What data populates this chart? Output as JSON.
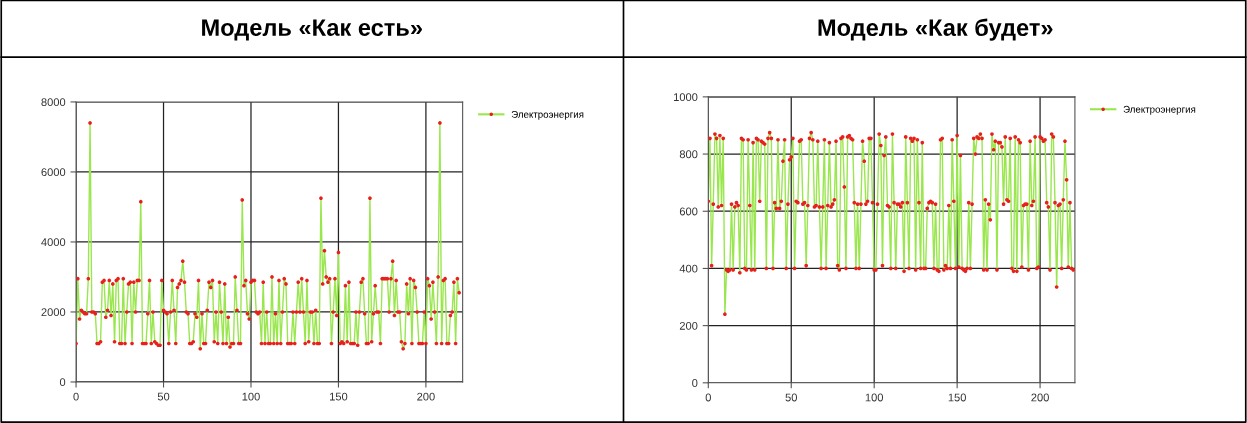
{
  "chart_data": [
    {
      "type": "line",
      "title": "Модель «Как есть»",
      "xlim": [
        0,
        221
      ],
      "xticks": [
        0,
        50,
        100,
        150,
        200
      ],
      "ylim": [
        0,
        8000
      ],
      "yticks": [
        0,
        2000,
        4000,
        6000,
        8000
      ],
      "grid": true,
      "legend": "top right",
      "marker": "circle",
      "line_style": "solid",
      "series": [
        {
          "name": "Электроэнергия",
          "color": "#99e64d",
          "x": [
            0,
            1,
            2,
            3,
            4,
            5,
            6,
            7,
            8,
            9,
            10,
            11,
            12,
            13,
            14,
            15,
            16,
            17,
            18,
            19,
            20,
            21,
            22,
            23,
            24,
            25,
            26,
            27,
            28,
            29,
            30,
            31,
            32,
            33,
            34,
            35,
            36,
            37,
            38,
            39,
            40,
            41,
            42,
            43,
            44,
            45,
            46,
            47,
            48,
            49,
            50,
            51,
            52,
            53,
            54,
            55,
            56,
            57,
            58,
            59,
            60,
            61,
            62,
            63,
            64,
            65,
            66,
            67,
            68,
            69,
            70,
            71,
            72,
            73,
            74,
            75,
            76,
            77,
            78,
            79,
            80,
            81,
            82,
            83,
            84,
            85,
            86,
            87,
            88,
            89,
            90,
            91,
            92,
            93,
            94,
            95,
            96,
            97,
            98,
            99,
            100,
            101,
            102,
            103,
            104,
            105,
            106,
            107,
            108,
            109,
            110,
            111,
            112,
            113,
            114,
            115,
            116,
            117,
            118,
            119,
            120,
            121,
            122,
            123,
            124,
            125,
            126,
            127,
            128,
            129,
            130,
            131,
            132,
            133,
            134,
            135,
            136,
            137,
            138,
            139,
            140,
            141,
            142,
            143,
            144,
            145,
            146,
            147,
            148,
            149,
            150,
            151,
            152,
            153,
            154,
            155,
            156,
            157,
            158,
            159,
            160,
            161,
            162,
            163,
            164,
            165,
            166,
            167,
            168,
            169,
            170,
            171,
            172,
            173,
            174,
            175,
            176,
            177,
            178,
            179,
            180,
            181,
            182,
            183,
            184,
            185,
            186,
            187,
            188,
            189,
            190,
            191,
            192,
            193,
            194,
            195,
            196,
            197,
            198,
            199,
            200,
            201,
            202,
            203,
            204,
            205,
            206,
            207,
            208,
            209,
            210,
            211,
            212,
            213,
            214,
            215,
            216,
            217,
            218,
            219
          ],
          "values": [
            1100,
            2950,
            1800,
            2050,
            2000,
            1950,
            1950,
            2950,
            7400,
            2000,
            2000,
            1950,
            1100,
            1100,
            1150,
            2850,
            2900,
            1850,
            2050,
            2900,
            1900,
            2800,
            1150,
            2900,
            2950,
            1100,
            1100,
            2950,
            1100,
            2000,
            2800,
            2850,
            1100,
            2850,
            2000,
            2900,
            2900,
            5150,
            1100,
            1100,
            1100,
            1950,
            2900,
            1100,
            2000,
            1150,
            1100,
            1050,
            1050,
            2900,
            2050,
            2000,
            1950,
            1100,
            2000,
            2900,
            2050,
            1100,
            2700,
            2800,
            2900,
            3450,
            2850,
            2000,
            1950,
            1100,
            1100,
            1150,
            1950,
            1850,
            2900,
            950,
            1950,
            1100,
            1100,
            2050,
            2850,
            2700,
            2900,
            1150,
            2000,
            1100,
            2850,
            2000,
            1100,
            2800,
            1100,
            1850,
            1000,
            1100,
            1100,
            3000,
            2050,
            1100,
            1100,
            5200,
            2750,
            2900,
            1950,
            1800,
            2850,
            2900,
            2900,
            2000,
            1950,
            2000,
            1100,
            2850,
            1100,
            2000,
            1100,
            1100,
            3000,
            1100,
            1950,
            1100,
            2900,
            1100,
            2000,
            2950,
            2800,
            1100,
            1100,
            1100,
            2000,
            1100,
            2000,
            2850,
            2000,
            2950,
            2000,
            1100,
            2900,
            1150,
            2000,
            2000,
            1100,
            2050,
            1100,
            1100,
            5250,
            2800,
            3750,
            3000,
            2850,
            2950,
            1100,
            2000,
            2950,
            1900,
            3700,
            1100,
            1150,
            1100,
            2750,
            1150,
            2850,
            1100,
            1100,
            1100,
            2000,
            1050,
            2000,
            2850,
            2950,
            1950,
            1100,
            1100,
            5250,
            1150,
            1950,
            2750,
            2000,
            2000,
            1100,
            2950,
            2950,
            2950,
            2950,
            2000,
            2950,
            3450,
            1900,
            2900,
            2000,
            2000,
            1150,
            950,
            1100,
            2800,
            1950,
            2950,
            1100,
            2900,
            2700,
            2000,
            1100,
            1100,
            1100,
            2000,
            1100,
            2950,
            2750,
            1800,
            2850,
            2000,
            1100,
            3000,
            7400,
            1100,
            2900,
            2950,
            1100,
            1100,
            1900,
            2000,
            2850,
            1100,
            2950,
            2550
          ],
          "colors": [
            "#e8201c",
            "#e8201c",
            "#e8201c",
            "#e8201c",
            "#e8201c",
            "#e8201c",
            "#e8201c",
            "#e8201c",
            "#e8201c",
            "#e8201c",
            "#e8201c",
            "#e8201c",
            "#e8201c",
            "#e8201c",
            "#e8201c",
            "#e8201c",
            "#e8201c",
            "#e8201c",
            "#e8201c",
            "#e8201c",
            "#e8201c",
            "#e8201c",
            "#e8201c",
            "#e8201c",
            "#e8201c",
            "#e8201c",
            "#e8201c",
            "#e8201c",
            "#e8201c",
            "#e8201c",
            "#e8201c",
            "#e8201c",
            "#e8201c",
            "#e8201c",
            "#e8201c",
            "#e8201c",
            "#e8201c",
            "#e8201c",
            "#e8201c",
            "#e8201c",
            "#e8201c",
            "#e8201c",
            "#e8201c",
            "#e8201c",
            "#e8201c",
            "#e8201c",
            "#e8201c",
            "#e8201c",
            "#e8201c",
            "#e8201c",
            "#e8201c",
            "#e8201c",
            "#e8201c",
            "#e8201c",
            "#e8201c",
            "#e8201c",
            "#e8201c",
            "#e8201c",
            "#e8201c",
            "#e8201c",
            "#e8201c",
            "#e8201c",
            "#e8201c",
            "#e8201c",
            "#e8201c",
            "#e8201c",
            "#e8201c",
            "#e8201c",
            "#e8201c",
            "#e8201c",
            "#e8201c",
            "#e8201c",
            "#e8201c",
            "#e8201c",
            "#e8201c",
            "#e8201c",
            "#e8201c",
            "#e8201c",
            "#e8201c",
            "#e8201c",
            "#e8201c",
            "#e8201c",
            "#e8201c",
            "#e8201c",
            "#e8201c",
            "#e8201c",
            "#e8201c",
            "#e8201c",
            "#e8201c",
            "#e8201c",
            "#e8201c",
            "#e8201c",
            "#e8201c",
            "#e8201c",
            "#e8201c",
            "#e8201c",
            "#e8201c",
            "#e8201c",
            "#e8201c",
            "#e8201c",
            "#e8201c",
            "#e8201c",
            "#e8201c",
            "#e8201c",
            "#e8201c",
            "#e8201c",
            "#e8201c",
            "#e8201c",
            "#e8201c",
            "#e8201c",
            "#e8201c",
            "#e8201c",
            "#e8201c",
            "#e8201c",
            "#e8201c",
            "#e8201c",
            "#e8201c",
            "#e8201c",
            "#e8201c",
            "#e8201c",
            "#e8201c",
            "#e8201c",
            "#e8201c",
            "#e8201c",
            "#e8201c",
            "#e8201c",
            "#e8201c",
            "#e8201c",
            "#e8201c",
            "#e8201c",
            "#e8201c",
            "#e8201c",
            "#e8201c",
            "#e8201c",
            "#e8201c",
            "#e8201c",
            "#e8201c",
            "#e8201c",
            "#e8201c",
            "#e8201c",
            "#e8201c",
            "#e8201c",
            "#e8201c",
            "#e8201c",
            "#e8201c",
            "#e8201c",
            "#e8201c",
            "#e8201c",
            "#e8201c",
            "#e8201c",
            "#e8201c",
            "#e8201c",
            "#e8201c",
            "#e8201c",
            "#e8201c",
            "#e8201c",
            "#e8201c",
            "#e8201c",
            "#e8201c",
            "#e8201c",
            "#e8201c",
            "#e8201c",
            "#e8201c",
            "#e8201c",
            "#e8201c",
            "#e8201c",
            "#e8201c",
            "#e8201c",
            "#e8201c",
            "#e8201c",
            "#e8201c",
            "#e8201c",
            "#e8201c",
            "#e8201c",
            "#e8201c",
            "#e8201c",
            "#e8201c",
            "#e8201c",
            "#e8201c",
            "#e8201c",
            "#e8201c",
            "#e8201c",
            "#e8201c",
            "#e8201c",
            "#e8201c",
            "#e8201c",
            "#e8201c",
            "#e8201c",
            "#e8201c",
            "#e8201c",
            "#e8201c",
            "#e8201c",
            "#e8201c",
            "#e8201c",
            "#e8201c",
            "#e8201c",
            "#e8201c",
            "#e8201c",
            "#e8201c",
            "#e8201c",
            "#e8201c",
            "#e8201c",
            "#e8201c",
            "#e8201c",
            "#e8201c",
            "#e8201c",
            "#e8201c",
            "#e8201c",
            "#e8201c",
            "#e8201c",
            "#e8201c",
            "#e8201c",
            "#e8201c",
            "#e8201c",
            "#e8201c",
            "#e8201c",
            "#e8201c",
            "#e8201c",
            "#e8201c",
            "#e8201c"
          ]
        }
      ]
    },
    {
      "type": "line",
      "title": "Модель «Как будет»",
      "xlim": [
        0,
        221
      ],
      "xticks": [
        0,
        50,
        100,
        150,
        200
      ],
      "ylim": [
        0,
        1000
      ],
      "yticks": [
        0,
        200,
        400,
        600,
        800,
        1000
      ],
      "grid": true,
      "legend": "top right",
      "marker": "circle",
      "line_style": "solid",
      "series": [
        {
          "name": "Электроэнергия",
          "color": "#99e64d",
          "x": [
            0,
            1,
            2,
            3,
            4,
            5,
            6,
            7,
            8,
            9,
            10,
            11,
            12,
            13,
            14,
            15,
            16,
            17,
            18,
            19,
            20,
            21,
            22,
            23,
            24,
            25,
            26,
            27,
            28,
            29,
            30,
            31,
            32,
            33,
            34,
            35,
            36,
            37,
            38,
            39,
            40,
            41,
            42,
            43,
            44,
            45,
            46,
            47,
            48,
            49,
            50,
            51,
            52,
            53,
            54,
            55,
            56,
            57,
            58,
            59,
            60,
            61,
            62,
            63,
            64,
            65,
            66,
            67,
            68,
            69,
            70,
            71,
            72,
            73,
            74,
            75,
            76,
            77,
            78,
            79,
            80,
            81,
            82,
            83,
            84,
            85,
            86,
            87,
            88,
            89,
            90,
            91,
            92,
            93,
            94,
            95,
            96,
            97,
            98,
            99,
            100,
            101,
            102,
            103,
            104,
            105,
            106,
            107,
            108,
            109,
            110,
            111,
            112,
            113,
            114,
            115,
            116,
            117,
            118,
            119,
            120,
            121,
            122,
            123,
            124,
            125,
            126,
            127,
            128,
            129,
            130,
            131,
            132,
            133,
            134,
            135,
            136,
            137,
            138,
            139,
            140,
            141,
            142,
            143,
            144,
            145,
            146,
            147,
            148,
            149,
            150,
            151,
            152,
            153,
            154,
            155,
            156,
            157,
            158,
            159,
            160,
            161,
            162,
            163,
            164,
            165,
            166,
            167,
            168,
            169,
            170,
            171,
            172,
            173,
            174,
            175,
            176,
            177,
            178,
            179,
            180,
            181,
            182,
            183,
            184,
            185,
            186,
            187,
            188,
            189,
            190,
            191,
            192,
            193,
            194,
            195,
            196,
            197,
            198,
            199,
            200,
            201,
            202,
            203,
            204,
            205,
            206,
            207,
            208,
            209,
            210,
            211,
            212,
            213,
            214,
            215,
            216,
            217,
            218,
            219,
            220
          ],
          "values": [
            635,
            855,
            410,
            625,
            870,
            855,
            615,
            865,
            620,
            855,
            240,
            395,
            390,
            395,
            625,
            395,
            615,
            630,
            620,
            385,
            855,
            850,
            400,
            395,
            850,
            620,
            395,
            840,
            395,
            855,
            850,
            635,
            845,
            840,
            835,
            400,
            855,
            875,
            855,
            400,
            630,
            610,
            850,
            610,
            635,
            775,
            850,
            400,
            625,
            780,
            790,
            855,
            400,
            635,
            630,
            845,
            850,
            625,
            630,
            410,
            620,
            855,
            875,
            850,
            615,
            620,
            845,
            615,
            400,
            615,
            850,
            400,
            620,
            840,
            615,
            625,
            640,
            845,
            410,
            395,
            855,
            860,
            685,
            400,
            860,
            865,
            855,
            850,
            630,
            400,
            625,
            400,
            625,
            845,
            775,
            625,
            635,
            855,
            855,
            630,
            395,
            395,
            625,
            870,
            830,
            410,
            795,
            860,
            620,
            615,
            400,
            870,
            630,
            400,
            625,
            625,
            615,
            630,
            390,
            860,
            630,
            400,
            855,
            845,
            855,
            395,
            850,
            630,
            400,
            840,
            400,
            400,
            610,
            630,
            635,
            630,
            400,
            625,
            395,
            390,
            850,
            855,
            395,
            410,
            400,
            620,
            400,
            850,
            635,
            400,
            865,
            405,
            795,
            400,
            395,
            390,
            400,
            630,
            400,
            625,
            855,
            800,
            860,
            855,
            870,
            855,
            395,
            640,
            395,
            625,
            570,
            870,
            815,
            845,
            395,
            840,
            840,
            825,
            625,
            860,
            640,
            635,
            855,
            400,
            390,
            860,
            390,
            850,
            840,
            405,
            620,
            625,
            625,
            395,
            845,
            620,
            635,
            860,
            400,
            405,
            860,
            855,
            845,
            850,
            630,
            615,
            395,
            870,
            860,
            630,
            335,
            620,
            625,
            400,
            640,
            845,
            710,
            405,
            630,
            400,
            395
          ],
          "colors": [
            "#e8201c",
            "#e8201c",
            "#e8201c",
            "#e8201c",
            "#e8201c",
            "#e8201c",
            "#e8201c",
            "#e8201c",
            "#e8201c",
            "#e8201c",
            "#e8201c",
            "#e8201c",
            "#e8201c",
            "#e8201c",
            "#e8201c",
            "#e8201c",
            "#e8201c",
            "#e8201c",
            "#e8201c",
            "#e8201c",
            "#e8201c",
            "#e8201c",
            "#e8201c",
            "#e8201c",
            "#e8201c",
            "#e8201c",
            "#e8201c",
            "#e8201c",
            "#e8201c",
            "#e8201c",
            "#e8201c",
            "#e8201c",
            "#e8201c",
            "#e8201c",
            "#e8201c",
            "#e8201c",
            "#e8201c",
            "#e8201c",
            "#e8201c",
            "#e8201c",
            "#e8201c",
            "#e8201c",
            "#e8201c",
            "#e8201c",
            "#e8201c",
            "#e8201c",
            "#e8201c",
            "#e8201c",
            "#e8201c",
            "#e8201c",
            "#e8201c",
            "#e8201c",
            "#e8201c",
            "#e8201c",
            "#e8201c",
            "#e8201c",
            "#e8201c",
            "#e8201c",
            "#e8201c",
            "#e8201c",
            "#e8201c",
            "#e8201c",
            "#e8201c",
            "#e8201c",
            "#e8201c",
            "#e8201c",
            "#e8201c",
            "#e8201c",
            "#e8201c",
            "#e8201c",
            "#e8201c",
            "#e8201c",
            "#e8201c",
            "#e8201c",
            "#e8201c",
            "#e8201c",
            "#e8201c",
            "#e8201c",
            "#e8201c",
            "#e8201c",
            "#e8201c",
            "#e8201c",
            "#e8201c",
            "#e8201c",
            "#e8201c",
            "#e8201c",
            "#e8201c",
            "#e8201c",
            "#e8201c",
            "#e8201c",
            "#e8201c",
            "#e8201c",
            "#e8201c",
            "#e8201c",
            "#e8201c",
            "#e8201c",
            "#e8201c",
            "#e8201c",
            "#e8201c",
            "#e8201c",
            "#e8201c",
            "#e8201c",
            "#e8201c",
            "#e8201c",
            "#e8201c",
            "#e8201c",
            "#e8201c",
            "#e8201c",
            "#e8201c",
            "#e8201c",
            "#e8201c",
            "#e8201c",
            "#e8201c",
            "#e8201c",
            "#e8201c",
            "#e8201c",
            "#e8201c",
            "#e8201c",
            "#e8201c",
            "#e8201c",
            "#e8201c",
            "#e8201c",
            "#e8201c",
            "#e8201c",
            "#e8201c",
            "#e8201c",
            "#e8201c",
            "#e8201c",
            "#e8201c",
            "#e8201c",
            "#e8201c",
            "#e8201c",
            "#e8201c",
            "#e8201c",
            "#e8201c",
            "#e8201c",
            "#e8201c",
            "#e8201c",
            "#e8201c",
            "#e8201c",
            "#e8201c",
            "#e8201c",
            "#e8201c",
            "#e8201c",
            "#e8201c",
            "#e8201c",
            "#e8201c",
            "#e8201c",
            "#e8201c",
            "#e8201c",
            "#e8201c",
            "#e8201c",
            "#e8201c",
            "#e8201c",
            "#e8201c",
            "#e8201c",
            "#e8201c",
            "#e8201c",
            "#e8201c",
            "#e8201c",
            "#e8201c",
            "#e8201c",
            "#e8201c",
            "#e8201c",
            "#e8201c",
            "#e8201c",
            "#e8201c",
            "#e8201c",
            "#e8201c",
            "#e8201c",
            "#e8201c",
            "#e8201c",
            "#e8201c",
            "#e8201c",
            "#e8201c",
            "#e8201c",
            "#e8201c",
            "#e8201c",
            "#e8201c",
            "#e8201c",
            "#e8201c",
            "#e8201c",
            "#e8201c",
            "#e8201c",
            "#e8201c",
            "#e8201c",
            "#e8201c",
            "#e8201c",
            "#e8201c",
            "#e8201c",
            "#e8201c",
            "#e8201c",
            "#e8201c",
            "#e8201c",
            "#e8201c",
            "#e8201c",
            "#e8201c",
            "#e8201c",
            "#e8201c",
            "#e8201c",
            "#e8201c",
            "#e8201c",
            "#e8201c",
            "#e8201c",
            "#e8201c",
            "#e8201c",
            "#e8201c",
            "#e8201c",
            "#e8201c",
            "#e8201c",
            "#e8201c",
            "#e8201c",
            "#e8201c",
            "#e8201c",
            "#e8201c",
            "#e8201c",
            "#e8201c",
            "#e8201c",
            "#e8201c",
            "#e8201c",
            "#e8201c"
          ]
        }
      ]
    }
  ]
}
